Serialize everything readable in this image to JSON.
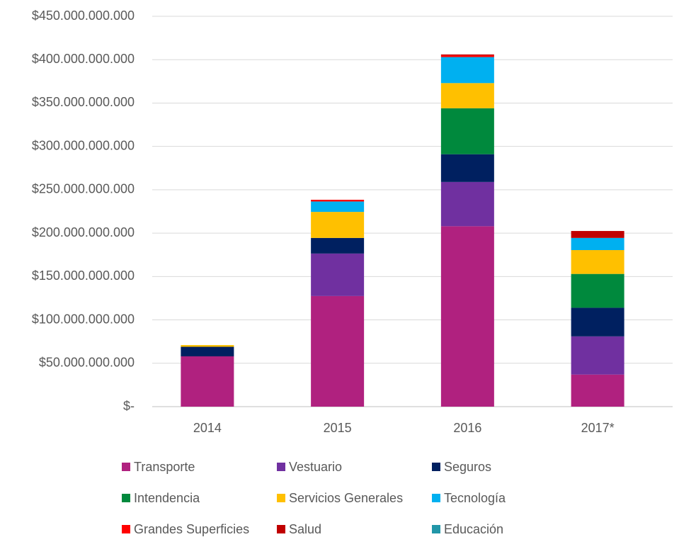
{
  "chart_data": {
    "type": "stacked_bar",
    "categories": [
      "2014",
      "2015",
      "2016",
      "2017*"
    ],
    "series": [
      {
        "name": "Transporte",
        "color": "#b0217f",
        "values": [
          58000000000,
          127500000000,
          208000000000,
          37000000000
        ]
      },
      {
        "name": "Vestuario",
        "color": "#7030a0",
        "values": [
          0,
          49000000000,
          51000000000,
          44000000000
        ]
      },
      {
        "name": "Seguros",
        "color": "#002060",
        "values": [
          11000000000,
          18000000000,
          32000000000,
          33000000000
        ]
      },
      {
        "name": "Intendencia",
        "color": "#00893d",
        "values": [
          0,
          0,
          53000000000,
          39000000000
        ]
      },
      {
        "name": "Servicios Generales",
        "color": "#ffc000",
        "values": [
          2000000000,
          30000000000,
          29000000000,
          27500000000
        ]
      },
      {
        "name": "Tecnología",
        "color": "#00b0f0",
        "values": [
          0,
          12000000000,
          30000000000,
          14000000000
        ]
      },
      {
        "name": "Grandes Superficies",
        "color": "#ff0000",
        "values": [
          0,
          2000000000,
          2000000000,
          0
        ]
      },
      {
        "name": "Salud",
        "color": "#c00000",
        "values": [
          0,
          0,
          1000000000,
          8000000000
        ]
      },
      {
        "name": "Educación",
        "color": "#2196a8",
        "values": [
          0,
          0,
          0,
          0
        ]
      }
    ],
    "ylim": [
      0,
      450000000000
    ],
    "yticks": [
      {
        "value": 0,
        "label": "$-"
      },
      {
        "value": 50000000000,
        "label": "$50.000.000.000"
      },
      {
        "value": 100000000000,
        "label": "$100.000.000.000"
      },
      {
        "value": 150000000000,
        "label": "$150.000.000.000"
      },
      {
        "value": 200000000000,
        "label": "$200.000.000.000"
      },
      {
        "value": 250000000000,
        "label": "$250.000.000.000"
      },
      {
        "value": 300000000000,
        "label": "$300.000.000.000"
      },
      {
        "value": 350000000000,
        "label": "$350.000.000.000"
      },
      {
        "value": 400000000000,
        "label": "$400.000.000.000"
      },
      {
        "value": 450000000000,
        "label": "$450.000.000.000"
      }
    ],
    "grid": true,
    "legend": "bottom"
  }
}
